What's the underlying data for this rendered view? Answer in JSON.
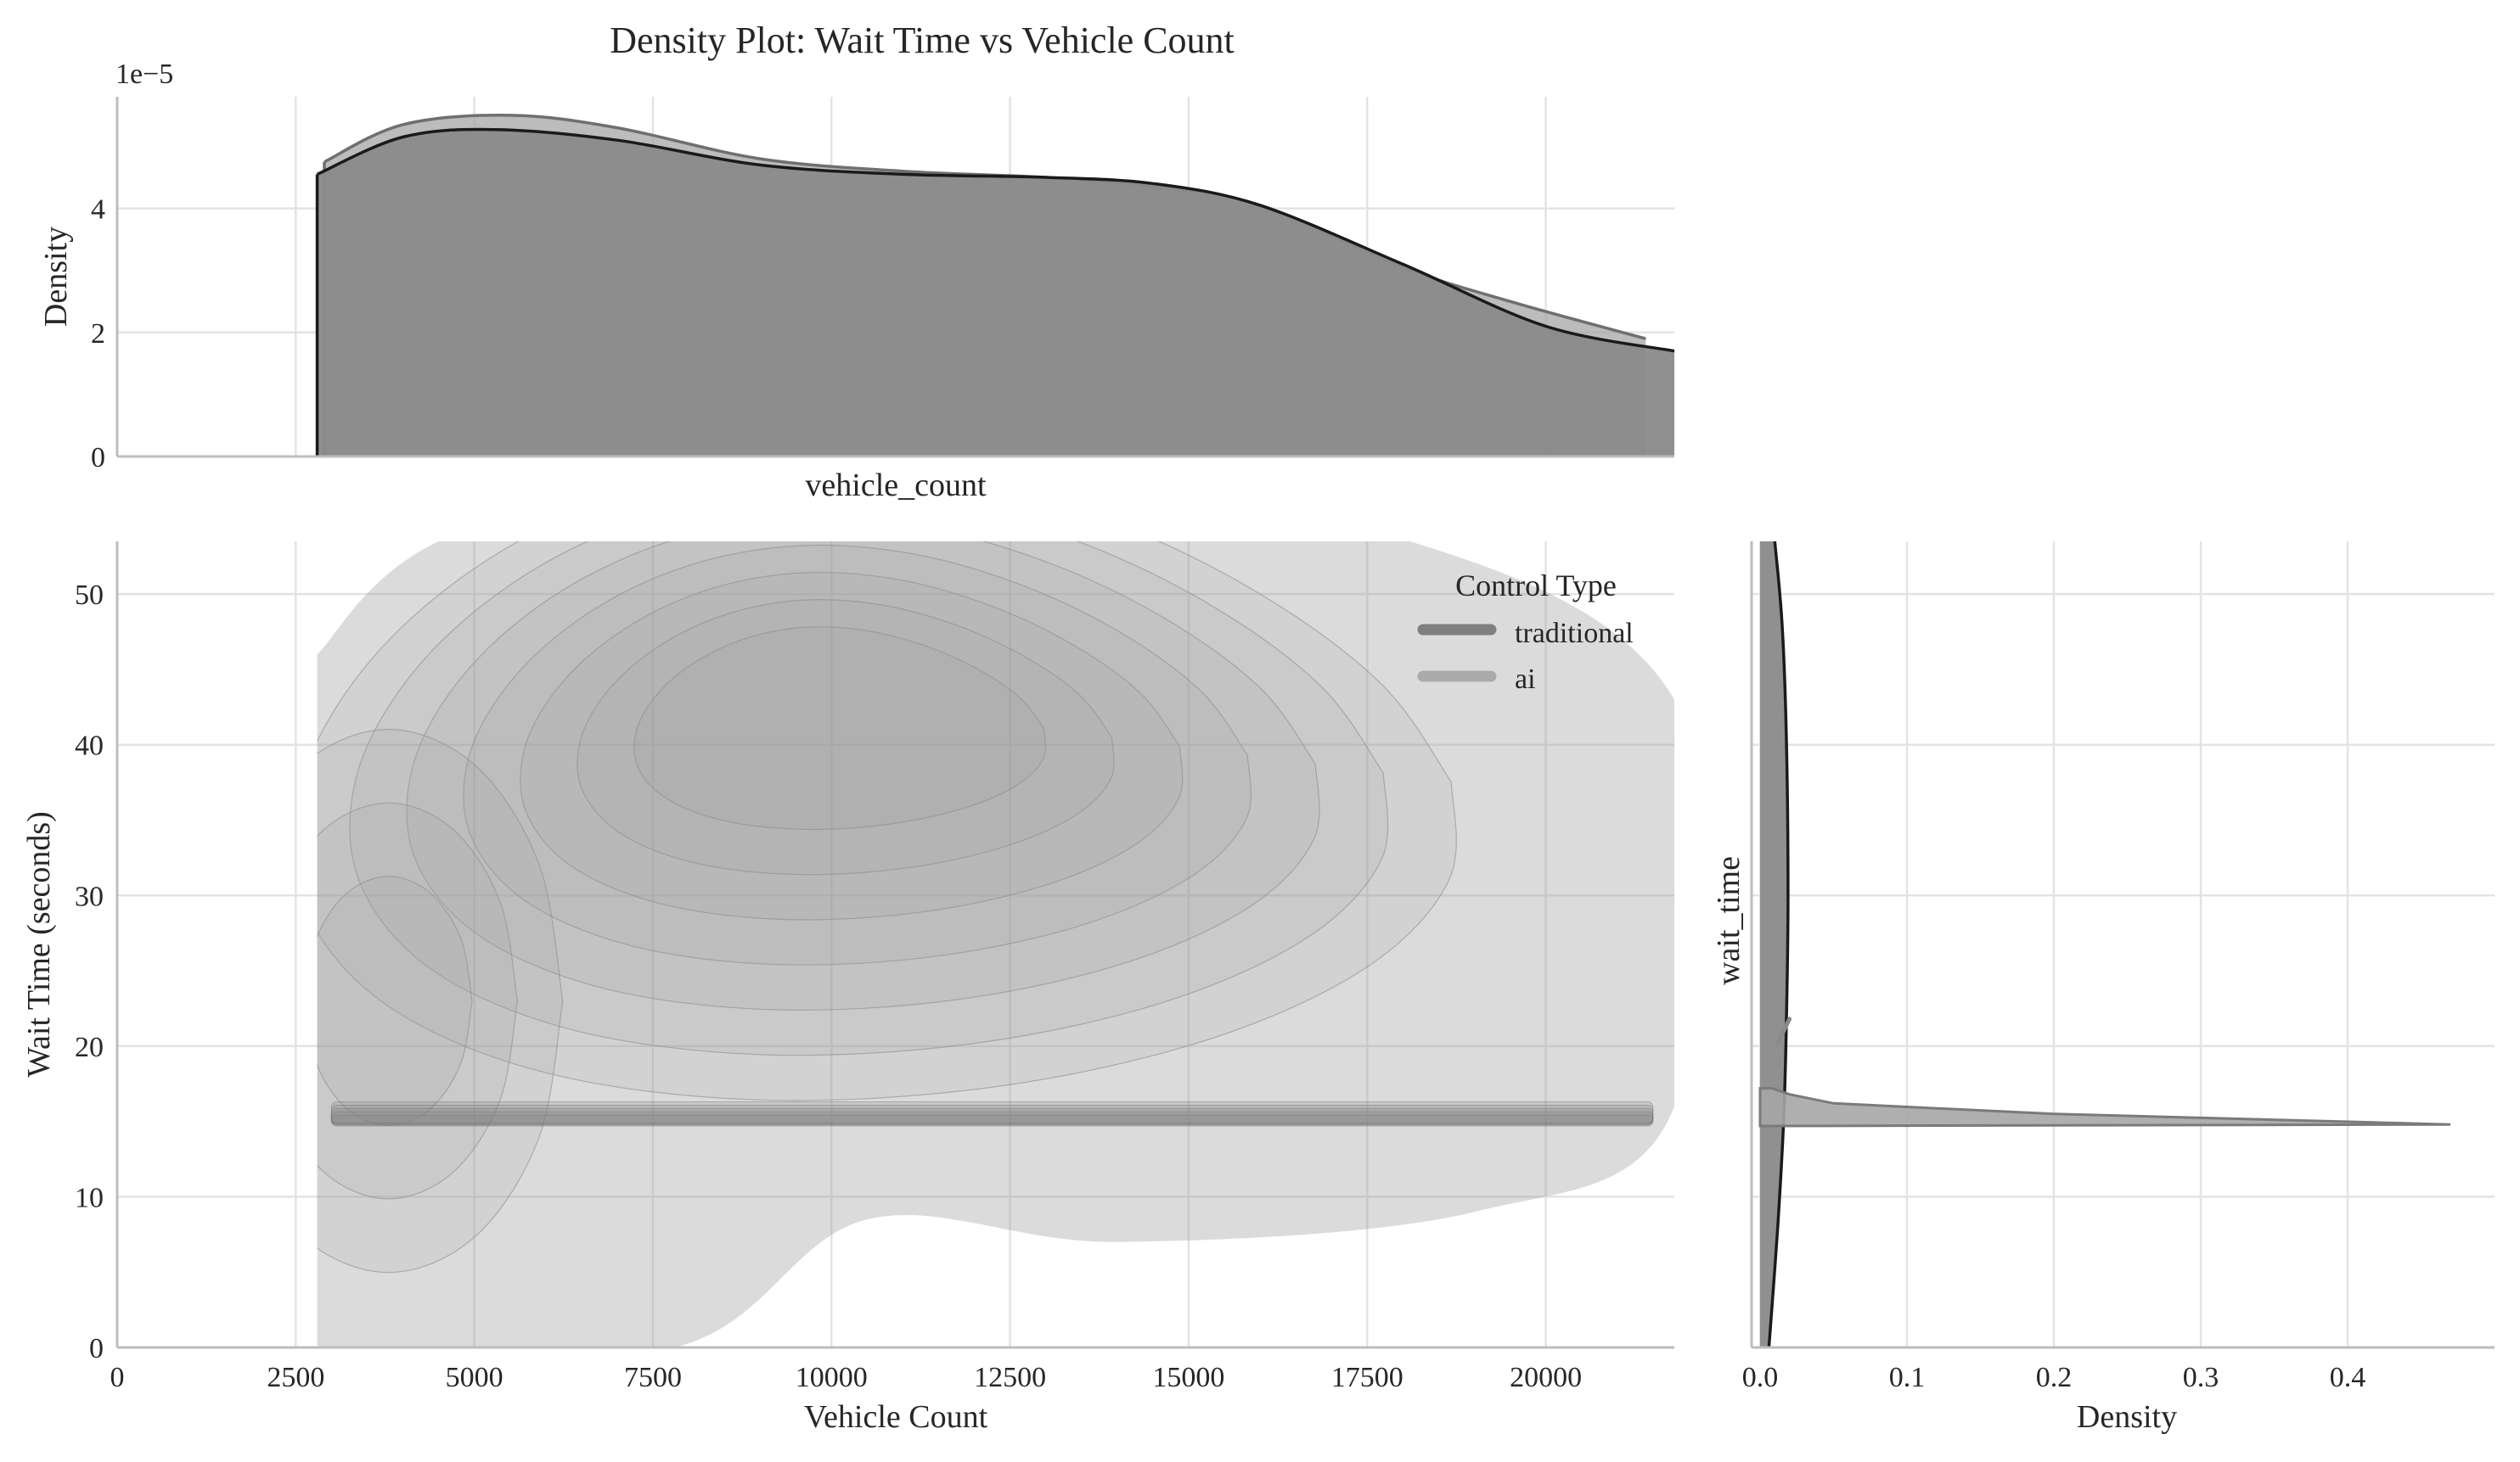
{
  "chart_data": {
    "type": "jointplot-kde",
    "title": "Density Plot: Wait Time vs Vehicle Count",
    "main": {
      "type": "kde-2d-contour",
      "xlabel": "Vehicle Count",
      "ylabel": "Wait Time (seconds)",
      "xlim": [
        0,
        21800
      ],
      "ylim": [
        0,
        53.5
      ],
      "xticks": [
        0,
        2500,
        5000,
        7500,
        10000,
        12500,
        15000,
        17500,
        20000
      ],
      "yticks": [
        0,
        10,
        20,
        30,
        40,
        50
      ],
      "grid": true,
      "density_peaks": [
        {
          "series": "traditional",
          "x": 10000,
          "y": 42
        },
        {
          "series": "traditional",
          "x": 3800,
          "y": 23
        },
        {
          "series": "ai",
          "x": 12000,
          "y": 15
        }
      ]
    },
    "marginal_x": {
      "type": "area",
      "xlabel": "vehicle_count",
      "ylabel": "Density",
      "offset_text": "1e−5",
      "ylim": [
        0,
        5.8
      ],
      "yticks": [
        0,
        2,
        4
      ],
      "series": [
        {
          "name": "traditional",
          "x": [
            2800,
            4000,
            5300,
            7000,
            9000,
            11000,
            13000,
            14500,
            16000,
            18000,
            20000,
            21800
          ],
          "y": [
            4.55,
            5.15,
            5.27,
            5.1,
            4.7,
            4.55,
            4.5,
            4.4,
            4.05,
            3.1,
            2.1,
            1.7
          ]
        },
        {
          "name": "ai",
          "x": [
            2900,
            4000,
            5500,
            7000,
            9000,
            11000,
            13000,
            14500,
            16000,
            18000,
            19500,
            21400
          ],
          "y": [
            4.75,
            5.35,
            5.5,
            5.3,
            4.8,
            4.6,
            4.5,
            4.35,
            4.05,
            3.05,
            2.5,
            1.9
          ]
        }
      ]
    },
    "marginal_y": {
      "type": "area",
      "xlabel": "Density",
      "ylabel": "wait_time",
      "xlim": [
        0,
        0.5
      ],
      "xticks": [
        "0.0",
        "0.1",
        "0.2",
        "0.3",
        "0.4"
      ],
      "series": [
        {
          "name": "traditional",
          "y": [
            0,
            8,
            15,
            22,
            30,
            40,
            48,
            53.5
          ],
          "density": [
            0.006,
            0.012,
            0.016,
            0.018,
            0.019,
            0.018,
            0.015,
            0.01
          ]
        },
        {
          "name": "ai",
          "y": [
            14.7,
            14.8,
            15.5,
            16.2,
            16.8,
            17.2
          ],
          "density": [
            0.007,
            0.47,
            0.2,
            0.05,
            0.02,
            0.008
          ]
        }
      ]
    },
    "legend": {
      "title": "Control Type",
      "position": "upper-right",
      "items": [
        {
          "label": "traditional",
          "color": "#7f7f7f"
        },
        {
          "label": "ai",
          "color": "#ababab"
        }
      ]
    },
    "colors": {
      "traditional": "#7f7f7f",
      "ai": "#ababab",
      "fill_traditional": "#8a8a8a",
      "fill_ai": "#a6a6a6",
      "contour_fill": "#9c9c9c",
      "grid": "#e3e3e3"
    }
  }
}
